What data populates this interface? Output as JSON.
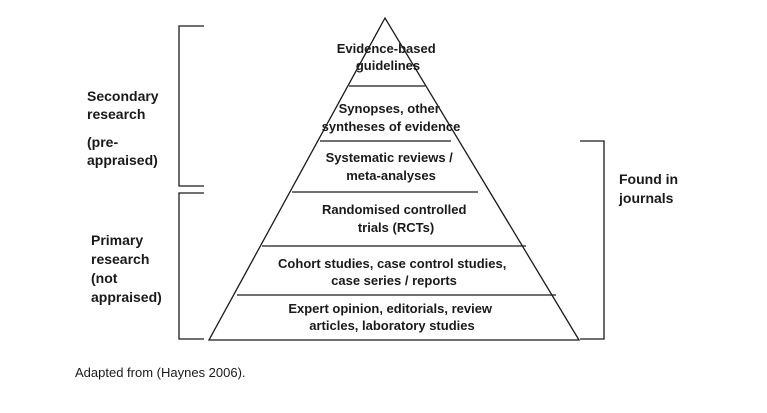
{
  "pyramid": {
    "tiers": [
      {
        "lines": [
          "Evidence-based",
          "guidelines"
        ]
      },
      {
        "lines": [
          "Synopses, other",
          "syntheses of evidence"
        ]
      },
      {
        "lines": [
          "Systematic reviews /",
          "meta-analyses"
        ]
      },
      {
        "lines": [
          "Randomised controlled",
          "trials (RCTs)"
        ]
      },
      {
        "lines": [
          "Cohort studies, case control studies,",
          "case series / reports"
        ]
      },
      {
        "lines": [
          "Expert opinion, editorials, review",
          "articles, laboratory studies"
        ]
      }
    ]
  },
  "left_labels": {
    "secondary": [
      "Secondary",
      "research",
      "",
      "(pre-",
      "appraised)"
    ],
    "primary": [
      "Primary",
      "research",
      "(not",
      "appraised)"
    ]
  },
  "right_label": [
    "Found in",
    "journals"
  ],
  "caption": "Adapted from (Haynes 2006).",
  "colors": {
    "stroke": "#1a1a1a",
    "text": "#1a1a1a",
    "background": "#ffffff"
  }
}
